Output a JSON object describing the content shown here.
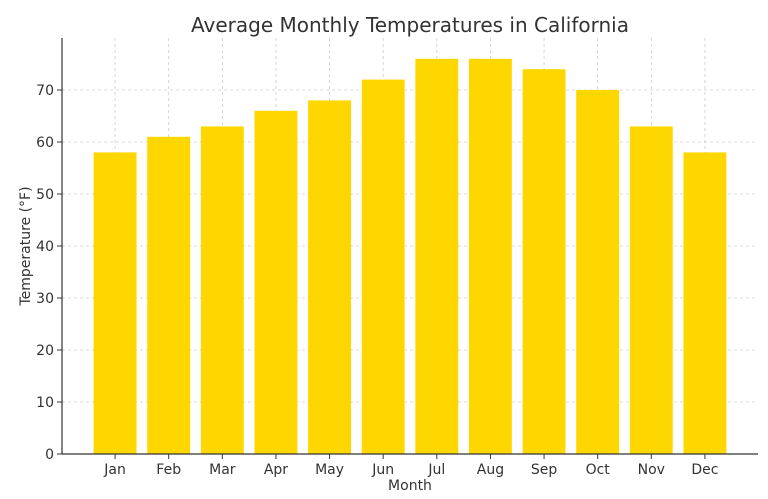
{
  "chart_data": {
    "type": "bar",
    "title": "Average Monthly Temperatures in California",
    "xlabel": "Month",
    "ylabel": "Temperature (°F)",
    "categories": [
      "Jan",
      "Feb",
      "Mar",
      "Apr",
      "May",
      "Jun",
      "Jul",
      "Aug",
      "Sep",
      "Oct",
      "Nov",
      "Dec"
    ],
    "values": [
      58,
      61,
      63,
      66,
      68,
      72,
      76,
      76,
      74,
      70,
      63,
      58
    ],
    "ylim": [
      0,
      80
    ],
    "yticks": [
      0,
      10,
      20,
      30,
      40,
      50,
      60,
      70
    ],
    "grid": true,
    "bar_color": "#FFD700"
  }
}
